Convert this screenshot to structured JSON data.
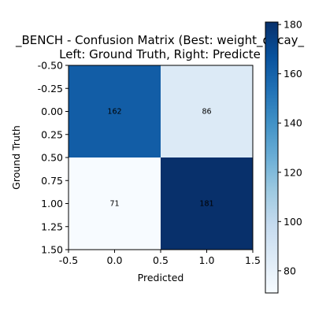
{
  "chart_data": {
    "type": "heatmap",
    "title_lines": [
      "_BENCH - Confusion Matrix (Best: weight_decay_",
      "Left: Ground Truth, Right: Predicte"
    ],
    "xlabel": "Predicted",
    "ylabel": "Ground Truth",
    "matrix": [
      [
        162,
        86
      ],
      [
        71,
        181
      ]
    ],
    "xlim": [
      -0.5,
      1.5
    ],
    "ylim": [
      1.5,
      -0.5
    ],
    "x_ticks": [
      "-0.5",
      "0.0",
      "0.5",
      "1.0",
      "1.5"
    ],
    "y_ticks": [
      "-0.50",
      "-0.25",
      "0.00",
      "0.25",
      "0.50",
      "0.75",
      "1.00",
      "1.25",
      "1.50"
    ],
    "colorbar": {
      "ticks": [
        "80",
        "100",
        "120",
        "140",
        "160",
        "180"
      ],
      "min": 71,
      "max": 181
    },
    "colormap": "Blues",
    "colors": {
      "low": "#f7fbff",
      "high": "#08306b"
    }
  }
}
